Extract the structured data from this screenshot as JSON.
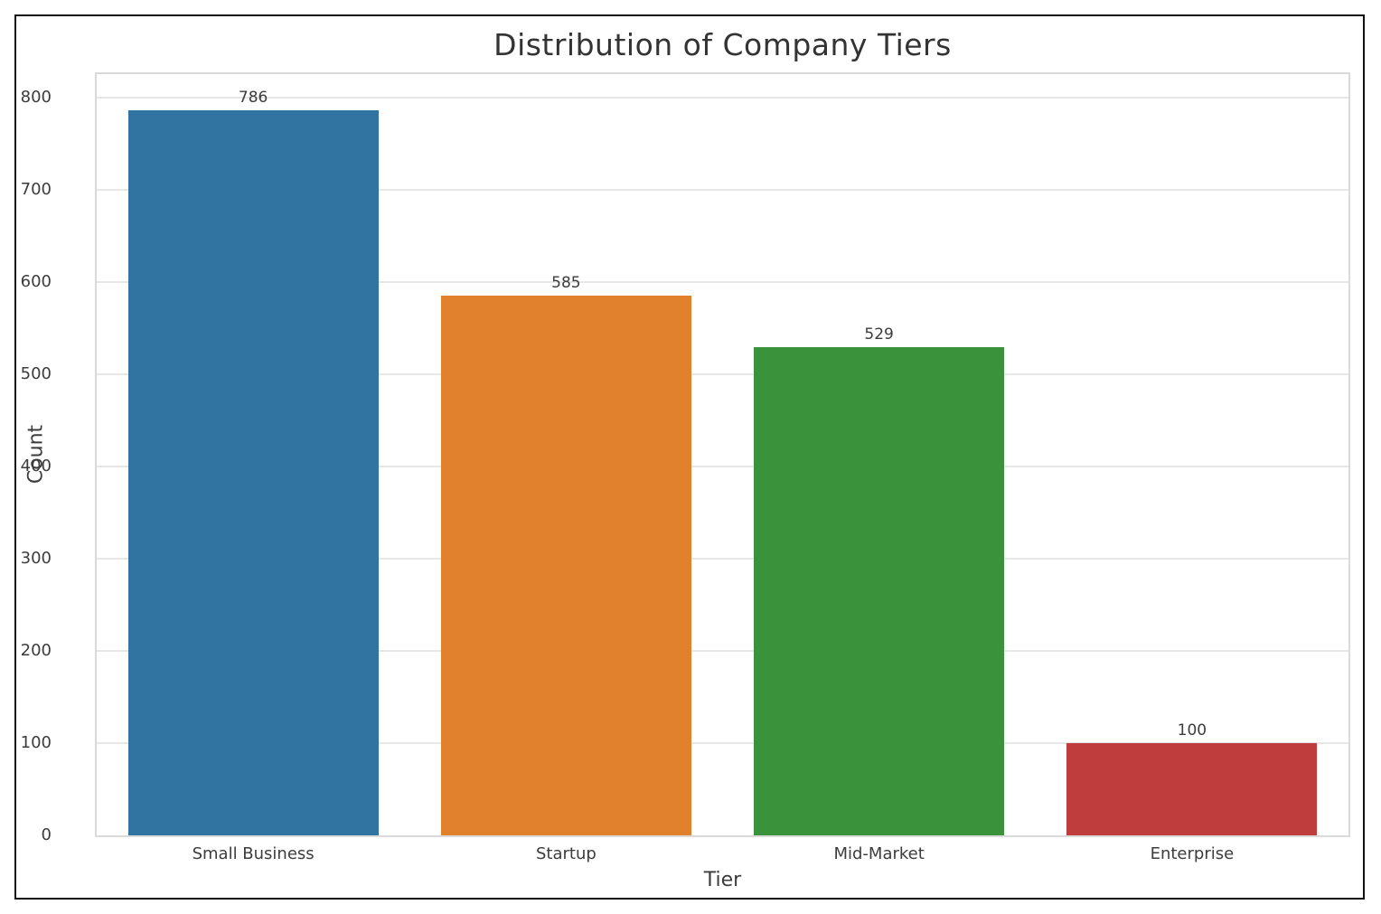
{
  "chart_data": {
    "type": "bar",
    "title": "Distribution of Company Tiers",
    "xlabel": "Tier",
    "ylabel": "Count",
    "categories": [
      "Small Business",
      "Startup",
      "Mid-Market",
      "Enterprise"
    ],
    "values": [
      786,
      585,
      529,
      100
    ],
    "value_labels": [
      "786",
      "585",
      "529",
      "100"
    ],
    "bar_colors": [
      "#3274a1",
      "#e1812c",
      "#3a923a",
      "#c03d3d"
    ],
    "y_ticks": [
      0,
      100,
      200,
      300,
      400,
      500,
      600,
      700,
      800
    ],
    "y_tick_labels": [
      "0",
      "100",
      "200",
      "300",
      "400",
      "500",
      "600",
      "700",
      "800"
    ],
    "ylim": [
      0,
      825
    ],
    "grid": "horizontal",
    "legend": null,
    "colors": {
      "grid": "#e7e7e7",
      "spine": "#dadada",
      "text": "#3c3c3c",
      "frame_border": "#111111",
      "background": "#ffffff"
    }
  }
}
